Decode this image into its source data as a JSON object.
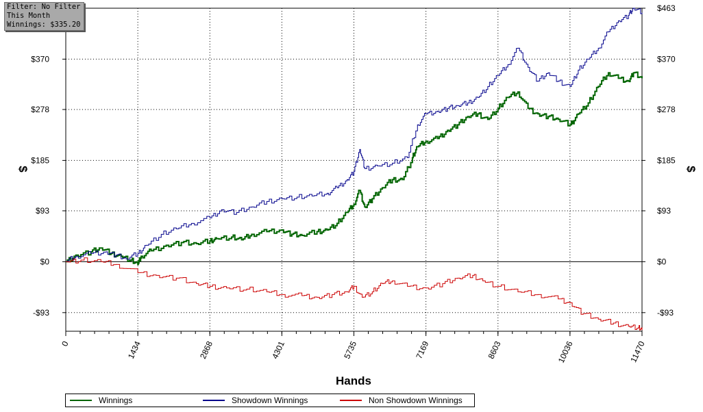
{
  "filter_box": {
    "line1": "Filter: No Filter",
    "line2": "This Month",
    "line3": "Winnings: $335.20"
  },
  "chart_data": {
    "type": "line",
    "xlabel": "Hands",
    "ylabel": "$",
    "xlim": [
      0,
      11470
    ],
    "ylim": [
      -127,
      463
    ],
    "grid": true,
    "legend_placement": "bottom-left",
    "x_ticks": [
      0,
      1434,
      2868,
      4301,
      5735,
      7169,
      8603,
      10036,
      11470
    ],
    "y_ticks": [
      -93,
      0,
      93,
      185,
      278,
      370,
      463
    ],
    "y_tick_labels": [
      "-$93",
      "$0",
      "$93",
      "$185",
      "$278",
      "$370",
      "$463"
    ],
    "series": [
      {
        "name": "Winnings",
        "color": "#006400",
        "points": [
          [
            0,
            0
          ],
          [
            200,
            12
          ],
          [
            500,
            18
          ],
          [
            700,
            25
          ],
          [
            900,
            15
          ],
          [
            1100,
            10
          ],
          [
            1300,
            3
          ],
          [
            1434,
            -5
          ],
          [
            1500,
            10
          ],
          [
            1700,
            20
          ],
          [
            2000,
            30
          ],
          [
            2300,
            35
          ],
          [
            2600,
            33
          ],
          [
            2868,
            38
          ],
          [
            3000,
            42
          ],
          [
            3300,
            45
          ],
          [
            3500,
            40
          ],
          [
            3700,
            50
          ],
          [
            4000,
            55
          ],
          [
            4301,
            58
          ],
          [
            4500,
            50
          ],
          [
            4700,
            48
          ],
          [
            5000,
            55
          ],
          [
            5200,
            58
          ],
          [
            5400,
            70
          ],
          [
            5600,
            90
          ],
          [
            5735,
            105
          ],
          [
            5850,
            130
          ],
          [
            5950,
            100
          ],
          [
            6100,
            115
          ],
          [
            6300,
            135
          ],
          [
            6500,
            150
          ],
          [
            6700,
            150
          ],
          [
            6900,
            190
          ],
          [
            7000,
            210
          ],
          [
            7169,
            220
          ],
          [
            7400,
            225
          ],
          [
            7600,
            240
          ],
          [
            7800,
            250
          ],
          [
            8000,
            265
          ],
          [
            8200,
            270
          ],
          [
            8400,
            260
          ],
          [
            8603,
            280
          ],
          [
            8800,
            300
          ],
          [
            9000,
            310
          ],
          [
            9200,
            280
          ],
          [
            9400,
            270
          ],
          [
            9600,
            265
          ],
          [
            9800,
            260
          ],
          [
            10036,
            250
          ],
          [
            10200,
            270
          ],
          [
            10400,
            290
          ],
          [
            10600,
            320
          ],
          [
            10800,
            345
          ],
          [
            11000,
            335
          ],
          [
            11200,
            330
          ],
          [
            11300,
            345
          ],
          [
            11470,
            335
          ]
        ]
      },
      {
        "name": "Showdown Winnings",
        "color": "#00008b",
        "points": [
          [
            0,
            0
          ],
          [
            200,
            10
          ],
          [
            500,
            15
          ],
          [
            800,
            18
          ],
          [
            1000,
            12
          ],
          [
            1200,
            5
          ],
          [
            1434,
            15
          ],
          [
            1600,
            30
          ],
          [
            1900,
            50
          ],
          [
            2200,
            60
          ],
          [
            2500,
            70
          ],
          [
            2868,
            80
          ],
          [
            3100,
            95
          ],
          [
            3400,
            90
          ],
          [
            3700,
            100
          ],
          [
            4000,
            110
          ],
          [
            4301,
            115
          ],
          [
            4600,
            118
          ],
          [
            4900,
            120
          ],
          [
            5200,
            125
          ],
          [
            5400,
            135
          ],
          [
            5600,
            150
          ],
          [
            5735,
            165
          ],
          [
            5850,
            205
          ],
          [
            5950,
            170
          ],
          [
            6200,
            175
          ],
          [
            6500,
            180
          ],
          [
            6800,
            190
          ],
          [
            7000,
            250
          ],
          [
            7169,
            270
          ],
          [
            7400,
            275
          ],
          [
            7600,
            280
          ],
          [
            7800,
            285
          ],
          [
            8000,
            290
          ],
          [
            8200,
            300
          ],
          [
            8400,
            320
          ],
          [
            8603,
            340
          ],
          [
            8800,
            360
          ],
          [
            9000,
            390
          ],
          [
            9200,
            355
          ],
          [
            9400,
            330
          ],
          [
            9600,
            345
          ],
          [
            9800,
            330
          ],
          [
            10036,
            320
          ],
          [
            10200,
            350
          ],
          [
            10400,
            370
          ],
          [
            10600,
            390
          ],
          [
            10800,
            420
          ],
          [
            11000,
            440
          ],
          [
            11200,
            450
          ],
          [
            11300,
            463
          ],
          [
            11470,
            455
          ]
        ]
      },
      {
        "name": "Non Showdown Winnings",
        "color": "#cc0000",
        "points": [
          [
            0,
            0
          ],
          [
            300,
            3
          ],
          [
            700,
            0
          ],
          [
            1000,
            -5
          ],
          [
            1434,
            -20
          ],
          [
            1800,
            -25
          ],
          [
            2200,
            -30
          ],
          [
            2600,
            -40
          ],
          [
            2868,
            -45
          ],
          [
            3200,
            -48
          ],
          [
            3600,
            -50
          ],
          [
            4000,
            -55
          ],
          [
            4301,
            -60
          ],
          [
            4700,
            -62
          ],
          [
            5000,
            -65
          ],
          [
            5300,
            -60
          ],
          [
            5600,
            -55
          ],
          [
            5735,
            -45
          ],
          [
            5900,
            -65
          ],
          [
            6100,
            -55
          ],
          [
            6300,
            -40
          ],
          [
            6500,
            -35
          ],
          [
            6800,
            -45
          ],
          [
            7169,
            -48
          ],
          [
            7500,
            -40
          ],
          [
            7800,
            -30
          ],
          [
            8100,
            -25
          ],
          [
            8300,
            -35
          ],
          [
            8603,
            -45
          ],
          [
            9000,
            -55
          ],
          [
            9400,
            -60
          ],
          [
            9800,
            -68
          ],
          [
            10036,
            -75
          ],
          [
            10300,
            -95
          ],
          [
            10600,
            -105
          ],
          [
            10900,
            -112
          ],
          [
            11200,
            -118
          ],
          [
            11400,
            -120
          ],
          [
            11470,
            -125
          ]
        ]
      }
    ]
  }
}
